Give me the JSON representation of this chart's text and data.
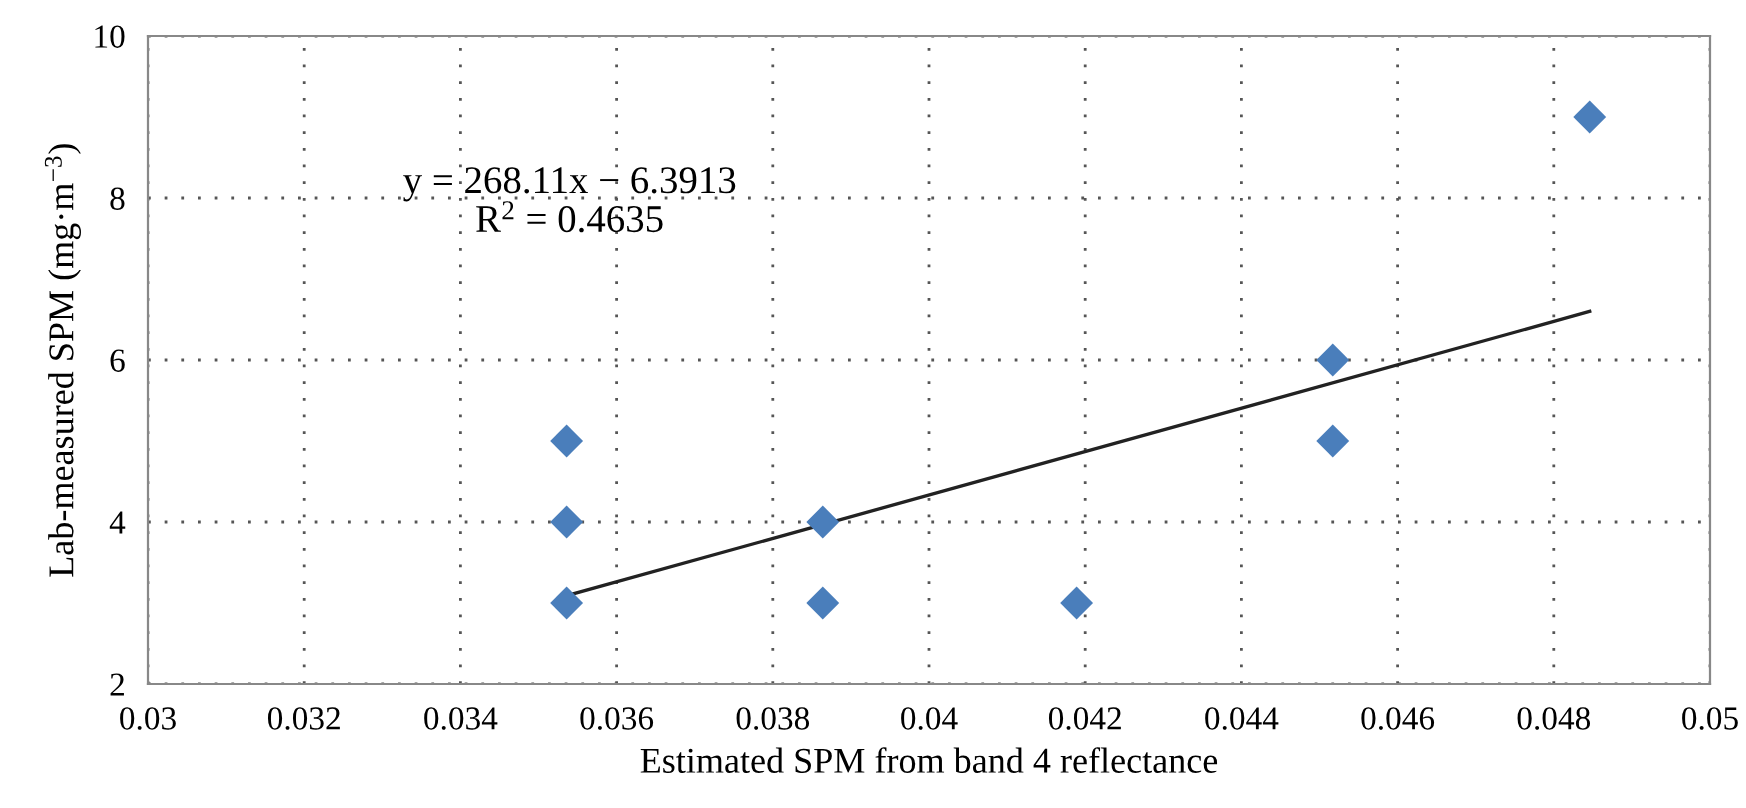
{
  "chart_data": {
    "type": "scatter",
    "xlabel": "Estimated SPM from band 4 reflectance",
    "ylabel": "Lab-measured SPM (mg·m$^{−3}$)",
    "xlim": [
      0.03,
      0.05
    ],
    "xticks": [
      0.03,
      0.032,
      0.034,
      0.036,
      0.038,
      0.04,
      0.042,
      0.044,
      0.046,
      0.048,
      0.05
    ],
    "ylim": [
      2,
      10
    ],
    "yticks": [
      2,
      4,
      6,
      8,
      10
    ],
    "grid": true,
    "series": [
      {
        "color": "#4a7ebb",
        "marker": "diamond",
        "x": [
          0.03536,
          0.03536,
          0.03536,
          0.03864,
          0.03864,
          0.04189,
          0.04517,
          0.04517,
          0.04846
        ],
        "values": [
          5,
          4,
          3,
          4,
          3,
          3,
          6,
          5,
          9
        ]
      },
      {
        "type": "line",
        "color": "#222222",
        "x": [
          0.03536,
          0.04846
        ],
        "values": [
          3.09,
          6.6
        ]
      }
    ],
    "annotations": [
      "y = 268.11x − 6.3913",
      "R$^{2}$ = 0.4635"
    ]
  }
}
